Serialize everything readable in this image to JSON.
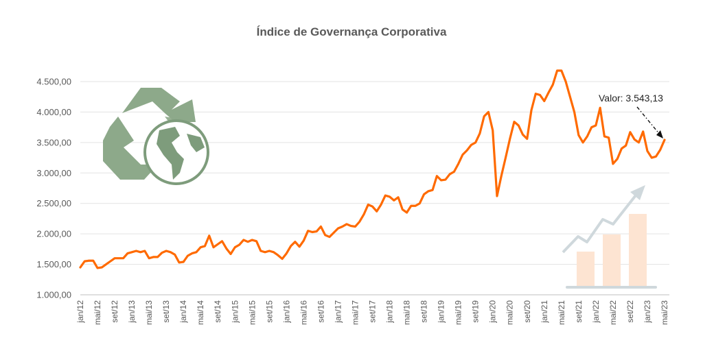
{
  "chart_data": {
    "type": "line",
    "title": "Índice de Governança Corporativa",
    "xlabel": "",
    "ylabel": "",
    "ylim": [
      1000,
      4500
    ],
    "yticks": [
      "1.000,00",
      "1.500,00",
      "2.000,00",
      "2.500,00",
      "3.000,00",
      "3.500,00",
      "4.000,00",
      "4.500,00"
    ],
    "grid": true,
    "x_start": "jan/12",
    "x_labels": [
      "jan/12",
      "mai/12",
      "set/12",
      "jan/13",
      "mai/13",
      "set/13",
      "jan/14",
      "mai/14",
      "set/14",
      "jan/15",
      "mai/15",
      "set/15",
      "jan/16",
      "mai/16",
      "set/16",
      "jan/17",
      "mai/17",
      "set/17",
      "jan/18",
      "mai/18",
      "set/18",
      "jan/19",
      "mai/19",
      "set/19",
      "jan/20",
      "mai/20",
      "set/20",
      "jan/21",
      "mai/21",
      "set/21",
      "jan/22",
      "mai/22",
      "set/22",
      "jan/23",
      "mai/23"
    ],
    "series": [
      {
        "color": "#FF6A00",
        "values": [
          1450,
          1550,
          1560,
          1560,
          1440,
          1450,
          1500,
          1550,
          1600,
          1600,
          1600,
          1680,
          1700,
          1720,
          1700,
          1720,
          1600,
          1620,
          1620,
          1690,
          1720,
          1700,
          1660,
          1530,
          1540,
          1640,
          1680,
          1700,
          1780,
          1800,
          1970,
          1780,
          1830,
          1880,
          1760,
          1670,
          1780,
          1820,
          1900,
          1870,
          1900,
          1880,
          1720,
          1700,
          1720,
          1700,
          1650,
          1590,
          1680,
          1800,
          1870,
          1790,
          1890,
          2050,
          2030,
          2040,
          2120,
          1980,
          1950,
          2020,
          2090,
          2120,
          2160,
          2130,
          2120,
          2200,
          2320,
          2480,
          2450,
          2370,
          2480,
          2630,
          2610,
          2550,
          2600,
          2400,
          2350,
          2460,
          2460,
          2500,
          2650,
          2700,
          2720,
          2950,
          2880,
          2890,
          2980,
          3020,
          3150,
          3300,
          3370,
          3460,
          3500,
          3650,
          3930,
          4000,
          3700,
          2620,
          2950,
          3250,
          3560,
          3840,
          3780,
          3630,
          3560,
          4030,
          4300,
          4280,
          4180,
          4320,
          4450,
          4680,
          4680,
          4500,
          4250,
          4000,
          3620,
          3500,
          3600,
          3750,
          3780,
          4070,
          3600,
          3580,
          3150,
          3230,
          3400,
          3450,
          3670,
          3550,
          3500,
          3680,
          3360,
          3250,
          3270,
          3380,
          3543
        ]
      }
    ],
    "annotation": {
      "text": "Valor: 3.543,13",
      "value": 3543.13
    }
  },
  "decor": {
    "recycle_icon": "recycle-globe-icon",
    "growth_icon": "growth-bars-arrow-icon",
    "colors": {
      "line": "#FF6A00",
      "recycle": "#8DA98A",
      "globe": "#7E9C7C",
      "bars": "#FDE4D2",
      "arrow": "#CFD8DC",
      "grid": "#E3E3E3"
    }
  }
}
